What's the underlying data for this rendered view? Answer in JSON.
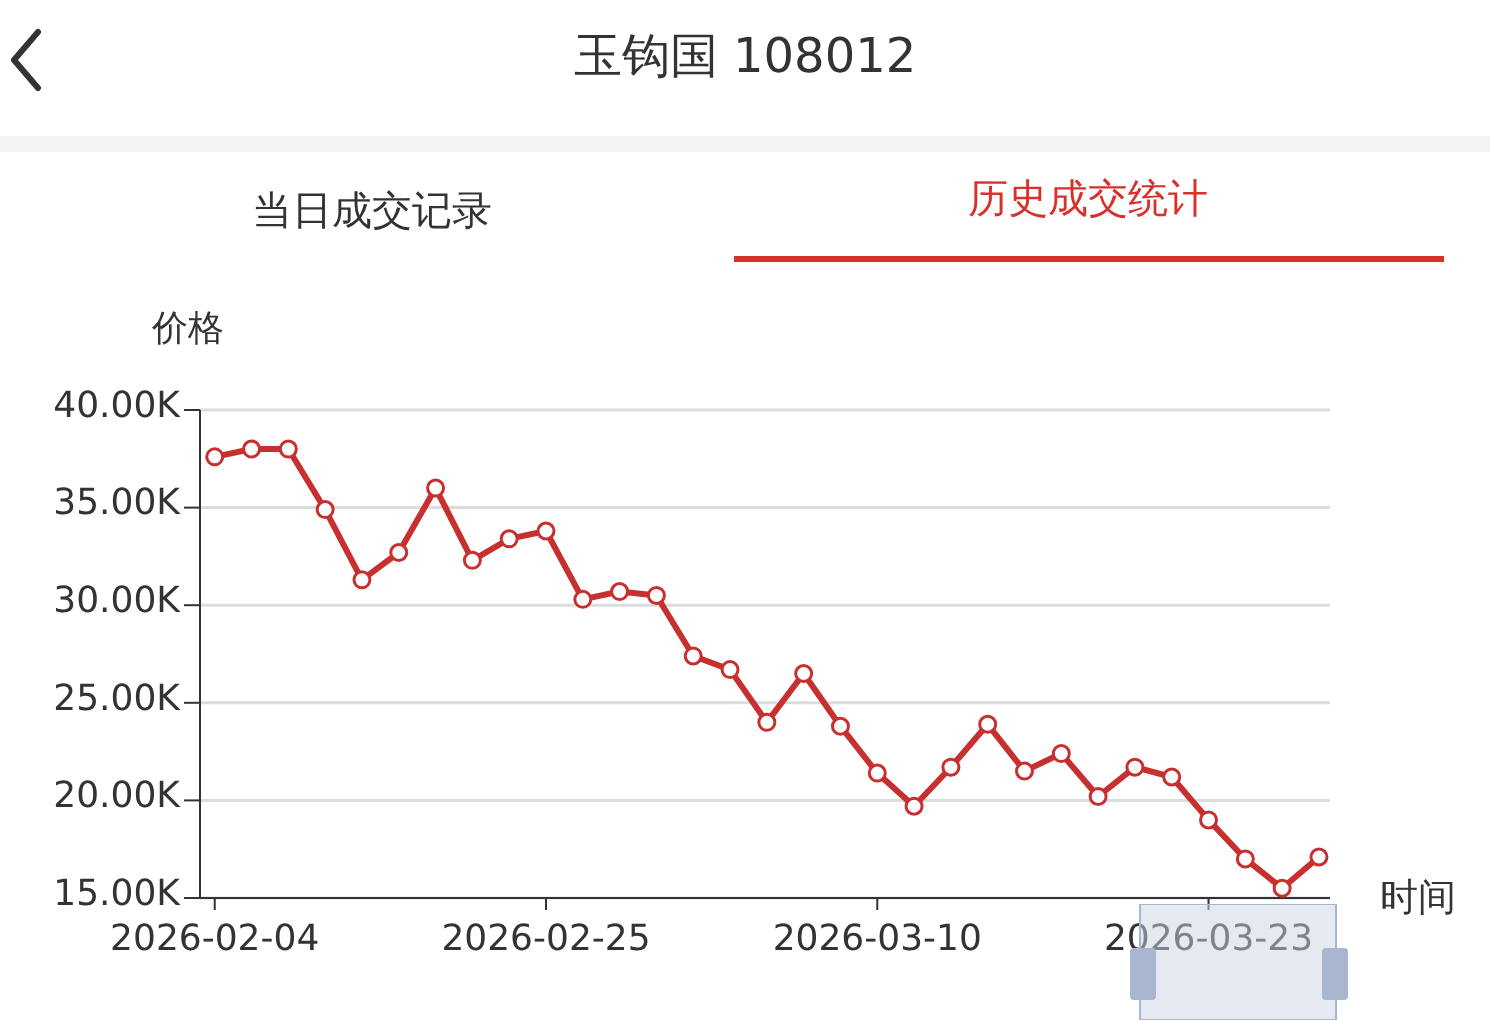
{
  "chart_data": {
    "type": "line",
    "title": "玉钩国 108012",
    "annotations": [
      "当日成交记录",
      "历史成交统计"
    ],
    "ylabel": "价格",
    "xlabel": "时间",
    "categories": [
      "2026-02-04",
      null,
      null,
      null,
      null,
      null,
      null,
      null,
      null,
      "2026-02-25",
      null,
      null,
      null,
      null,
      null,
      null,
      null,
      null,
      "2026-03-10",
      null,
      null,
      null,
      null,
      null,
      null,
      null,
      null,
      "2026-03-23",
      null,
      null,
      null
    ],
    "series": [
      {
        "color": "#c8302f",
        "values": [
          37600,
          38000,
          38000,
          34900,
          31300,
          32700,
          36000,
          32300,
          33400,
          33800,
          30300,
          30700,
          30500,
          27400,
          26700,
          24000,
          26500,
          23800,
          21400,
          19700,
          21700,
          23900,
          21500,
          22400,
          20200,
          21700,
          21200,
          19000,
          17000,
          15500,
          17100
        ]
      }
    ],
    "ylim": [
      15000,
      40000
    ],
    "yticks": [
      {
        "value": 15000,
        "label": "15.00K"
      },
      {
        "value": 20000,
        "label": "20.00K"
      },
      {
        "value": 25000,
        "label": "25.00K"
      },
      {
        "value": 30000,
        "label": "30.00K"
      },
      {
        "value": 35000,
        "label": "35.00K"
      },
      {
        "value": 40000,
        "label": "40.00K"
      }
    ],
    "grid": "y",
    "legend": false,
    "marker": "circle",
    "line_style": "solid"
  }
}
